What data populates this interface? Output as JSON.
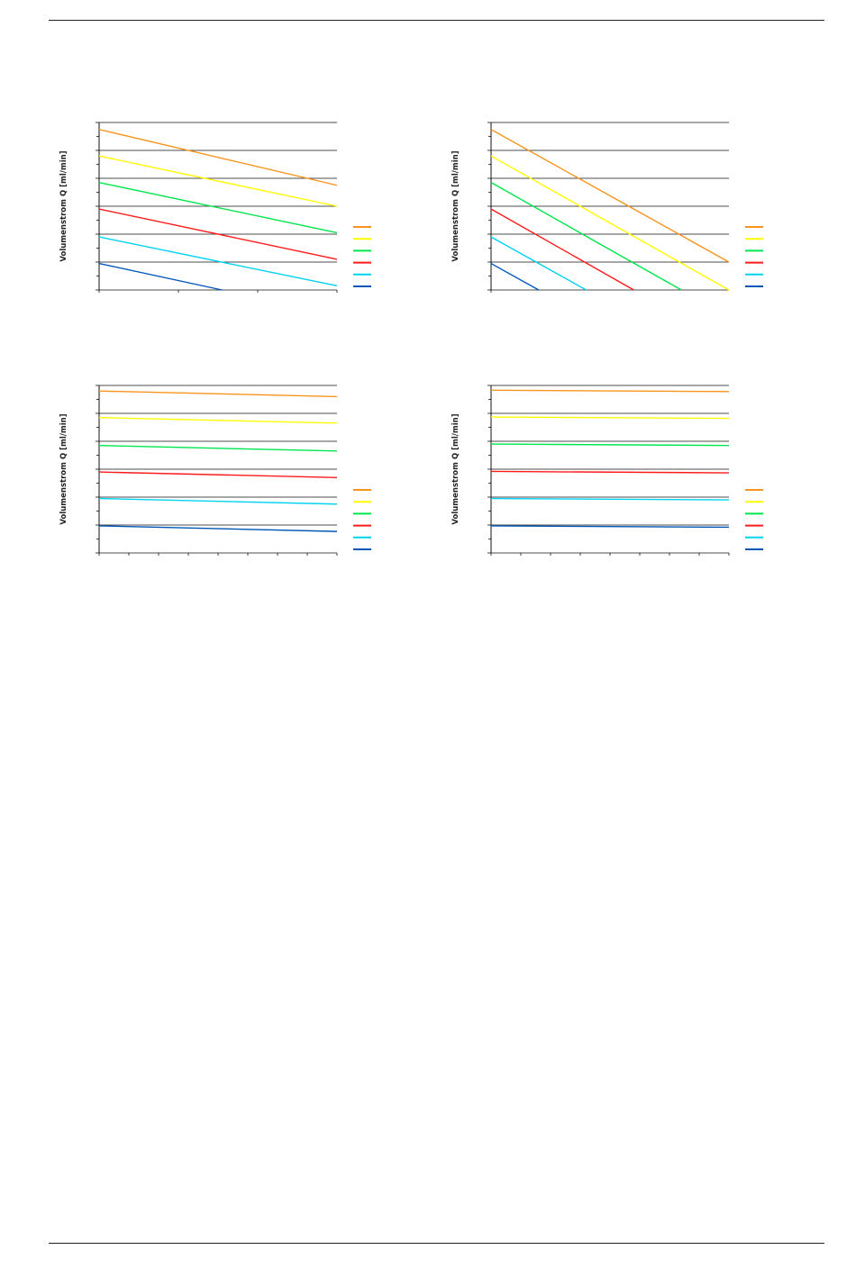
{
  "charts": [
    {
      "chart_data": {
        "type": "line",
        "ylabel": "Volumenstrom Q [ml/min]",
        "x_range": [
          0,
          30
        ],
        "ylim": [
          0,
          6
        ],
        "grid": true,
        "legend_position": "right",
        "x_minor_ticks": 3,
        "series": [
          {
            "color": "#f7941d",
            "x": [
              0,
              30
            ],
            "y": [
              5.75,
              3.75
            ]
          },
          {
            "color": "#ffff00",
            "x": [
              0,
              30
            ],
            "y": [
              4.8,
              3.0
            ]
          },
          {
            "color": "#00e64d",
            "x": [
              0,
              30
            ],
            "y": [
              3.85,
              2.05
            ]
          },
          {
            "color": "#ff1a1a",
            "x": [
              0,
              30
            ],
            "y": [
              2.9,
              1.1
            ]
          },
          {
            "color": "#00d2f0",
            "x": [
              0,
              30
            ],
            "y": [
              1.9,
              0.15
            ]
          },
          {
            "color": "#0057b8",
            "x": [
              0,
              15.5
            ],
            "y": [
              0.95,
              0
            ]
          }
        ]
      }
    },
    {
      "chart_data": {
        "type": "line",
        "ylabel": "Volumenstrom Q [ml/min]",
        "x_range": [
          0,
          30
        ],
        "ylim": [
          0,
          6
        ],
        "grid": true,
        "legend_position": "right",
        "x_minor_ticks": 0,
        "series": [
          {
            "color": "#f7941d",
            "x": [
              0,
              30
            ],
            "y": [
              5.75,
              1.0
            ]
          },
          {
            "color": "#ffff00",
            "x": [
              0,
              30
            ],
            "y": [
              4.8,
              0
            ]
          },
          {
            "color": "#00e64d",
            "x": [
              0,
              24
            ],
            "y": [
              3.85,
              0
            ]
          },
          {
            "color": "#ff1a1a",
            "x": [
              0,
              18
            ],
            "y": [
              2.9,
              0
            ]
          },
          {
            "color": "#00d2f0",
            "x": [
              0,
              12
            ],
            "y": [
              1.9,
              0
            ]
          },
          {
            "color": "#0057b8",
            "x": [
              0,
              6
            ],
            "y": [
              0.95,
              0
            ]
          }
        ]
      }
    },
    {
      "chart_data": {
        "type": "line",
        "ylabel": "Volumenstrom Q [ml/min]",
        "x_range": [
          0,
          8
        ],
        "ylim": [
          0,
          6
        ],
        "grid": true,
        "legend_position": "right",
        "x_minor_ticks": 8,
        "series": [
          {
            "color": "#f7941d",
            "x": [
              0,
              8
            ],
            "y": [
              5.8,
              5.6
            ]
          },
          {
            "color": "#ffff00",
            "x": [
              0,
              8
            ],
            "y": [
              4.85,
              4.65
            ]
          },
          {
            "color": "#00e64d",
            "x": [
              0,
              8
            ],
            "y": [
              3.85,
              3.65
            ]
          },
          {
            "color": "#ff1a1a",
            "x": [
              0,
              8
            ],
            "y": [
              2.9,
              2.7
            ]
          },
          {
            "color": "#00d2f0",
            "x": [
              0,
              8
            ],
            "y": [
              1.95,
              1.75
            ]
          },
          {
            "color": "#0057b8",
            "x": [
              0,
              8
            ],
            "y": [
              0.97,
              0.77
            ]
          }
        ]
      }
    },
    {
      "chart_data": {
        "type": "line",
        "ylabel": "Volumenstrom Q [ml/min]",
        "x_range": [
          0,
          8
        ],
        "ylim": [
          0,
          6
        ],
        "grid": true,
        "legend_position": "right",
        "x_minor_ticks": 8,
        "series": [
          {
            "color": "#f7941d",
            "x": [
              0,
              8
            ],
            "y": [
              5.83,
              5.78
            ]
          },
          {
            "color": "#ffff00",
            "x": [
              0,
              8
            ],
            "y": [
              4.87,
              4.82
            ]
          },
          {
            "color": "#00e64d",
            "x": [
              0,
              8
            ],
            "y": [
              3.9,
              3.85
            ]
          },
          {
            "color": "#ff1a1a",
            "x": [
              0,
              8
            ],
            "y": [
              2.92,
              2.87
            ]
          },
          {
            "color": "#00d2f0",
            "x": [
              0,
              8
            ],
            "y": [
              1.95,
              1.9
            ]
          },
          {
            "color": "#0057b8",
            "x": [
              0,
              8
            ],
            "y": [
              0.97,
              0.92
            ]
          }
        ]
      }
    }
  ]
}
